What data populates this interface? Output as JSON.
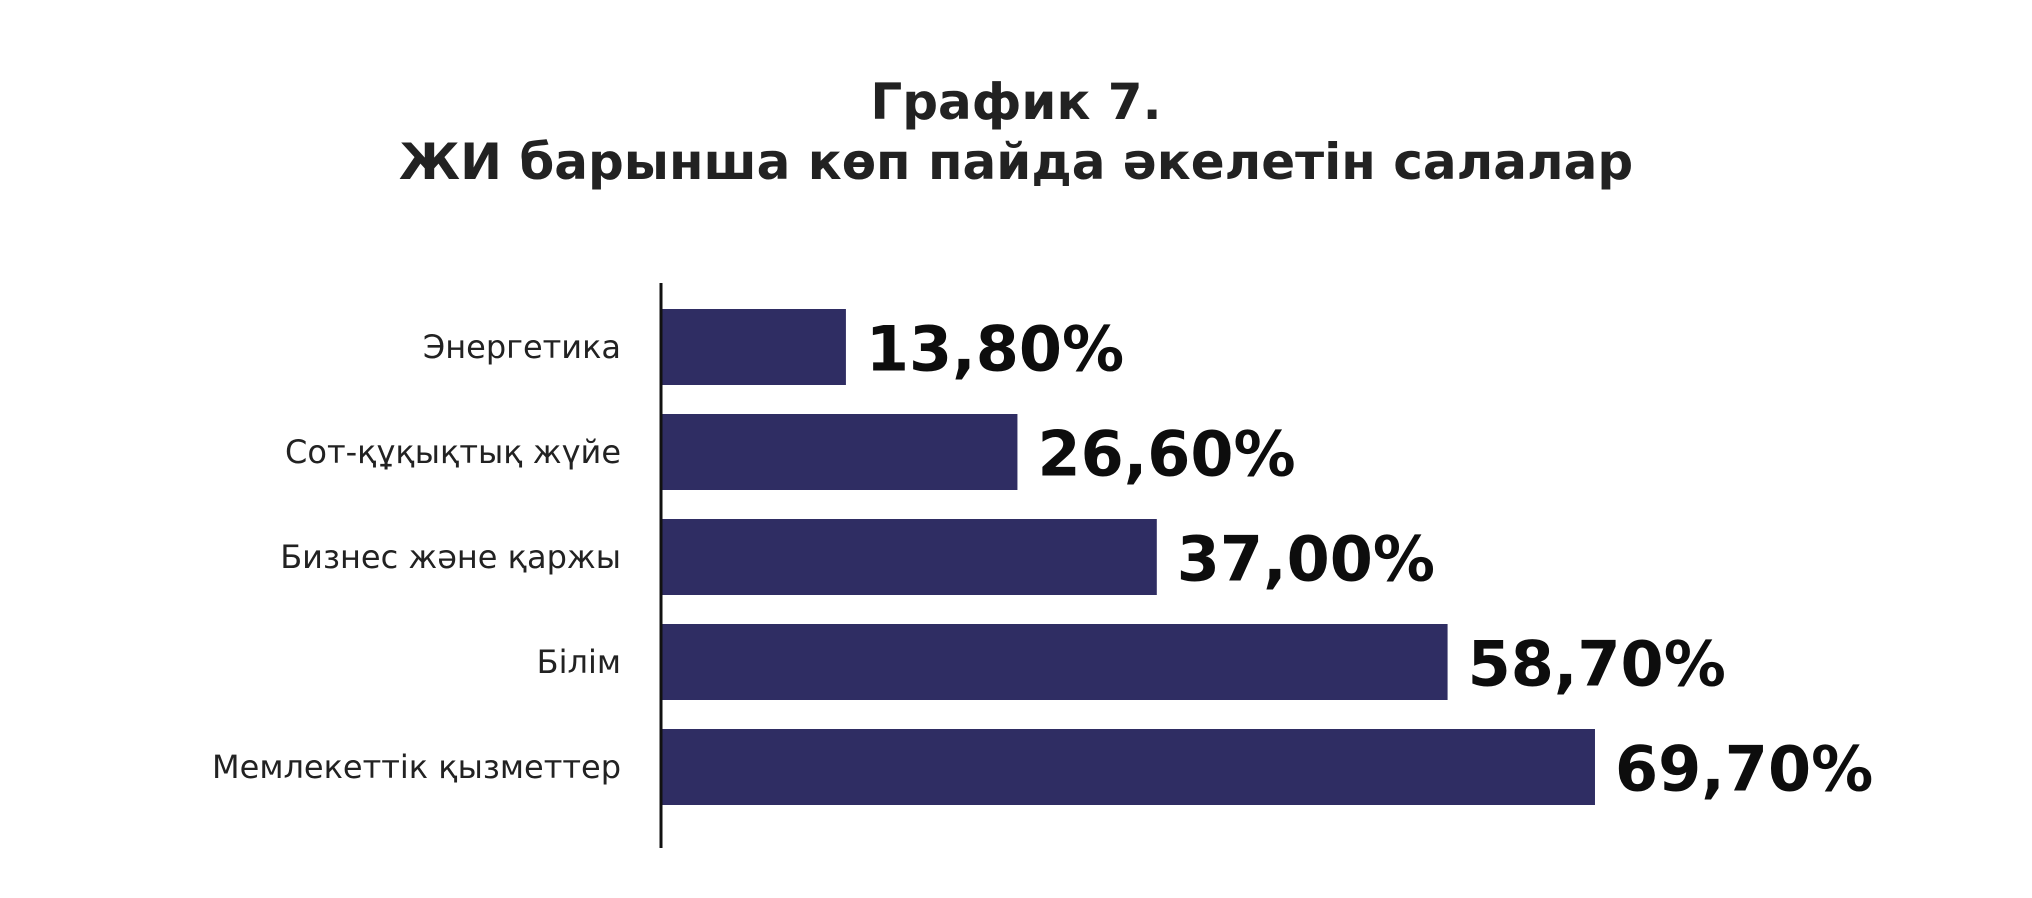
{
  "title": {
    "line1": "График 7.",
    "line2": "ЖИ барынша көп пайда әкелетін салалар"
  },
  "colors": {
    "bar": "#2f2d63",
    "axis": "#111111",
    "text": "#222222",
    "value_text": "#0d0d0d"
  },
  "chart_data": {
    "type": "bar",
    "orientation": "horizontal",
    "title": "График 7. ЖИ барынша көп пайда әкелетін салалар",
    "categories": [
      "Энергетика",
      "Сот-құқықтық жүйе",
      "Бизнес және қаржы",
      "Білім",
      "Мемлекеттік қызметтер"
    ],
    "values": [
      13.8,
      26.6,
      37.0,
      58.7,
      69.7
    ],
    "value_labels": [
      "13,80%",
      "26,60%",
      "37,00%",
      "58,70%",
      "69,70%"
    ],
    "xlim": [
      0,
      100
    ],
    "xlabel": "",
    "ylabel": "",
    "grid": false,
    "legend": "none"
  }
}
